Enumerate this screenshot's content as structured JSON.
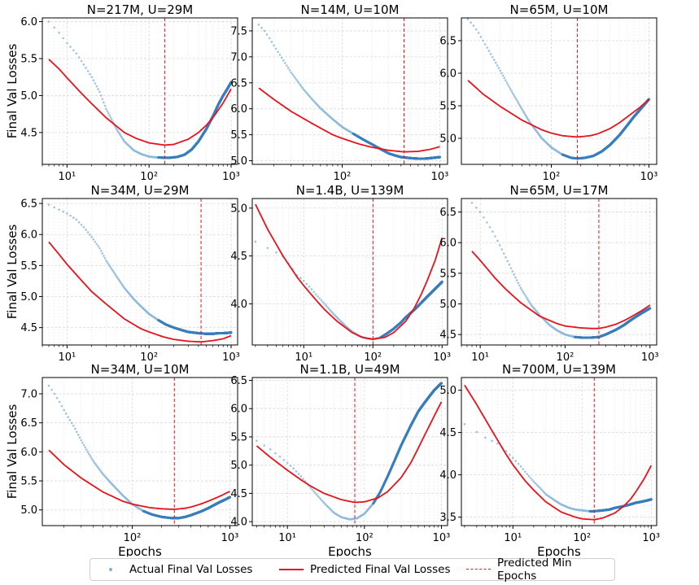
{
  "chart_data": [
    {
      "type": "line",
      "title": "N=217M, U=29M",
      "ylabel": "Final Val Losses",
      "xlabel": "",
      "xlim": [
        5,
        1200
      ],
      "ylim": [
        4.07,
        6.05
      ],
      "yticks": [
        4.5,
        5.0,
        5.5,
        6.0
      ],
      "ytick_labels": [
        "4.5",
        "5.0",
        "5.5",
        "6.0"
      ],
      "xticks": [
        10,
        100,
        1000
      ],
      "xtick_labels": [
        "10¹",
        "10²",
        "10³"
      ],
      "min_epochs": 155,
      "actual_x": [
        6,
        8,
        10,
        13,
        16,
        20,
        25,
        30,
        40,
        50,
        65,
        80,
        100,
        120,
        150,
        180,
        220,
        270,
        330,
        400,
        500,
        600,
        700,
        800,
        900,
        1000
      ],
      "actual_y": [
        6.0,
        5.85,
        5.71,
        5.57,
        5.42,
        5.25,
        5.05,
        4.82,
        4.55,
        4.38,
        4.26,
        4.21,
        4.175,
        4.165,
        4.16,
        4.16,
        4.17,
        4.2,
        4.27,
        4.38,
        4.55,
        4.72,
        4.88,
        5.0,
        5.09,
        5.18
      ],
      "pred_x": [
        6,
        8,
        10,
        15,
        20,
        30,
        50,
        70,
        100,
        155,
        200,
        300,
        400,
        500,
        600,
        800,
        1000
      ],
      "pred_y": [
        5.49,
        5.36,
        5.24,
        5.03,
        4.89,
        4.7,
        4.5,
        4.42,
        4.36,
        4.33,
        4.34,
        4.41,
        4.5,
        4.6,
        4.7,
        4.9,
        5.09
      ]
    },
    {
      "type": "line",
      "title": "N=14M, U=10M",
      "ylabel": "",
      "xlabel": "",
      "xlim": [
        12,
        1200
      ],
      "ylim": [
        4.93,
        7.75
      ],
      "yticks": [
        5.0,
        5.5,
        6.0,
        6.5,
        7.0,
        7.5
      ],
      "ytick_labels": [
        "5.0",
        "5.5",
        "6.0",
        "6.5",
        "7.0",
        "7.5"
      ],
      "xticks": [
        100,
        1000
      ],
      "xtick_labels": [
        "10²",
        "10³"
      ],
      "min_epochs": 430,
      "actual_x": [
        14,
        16,
        18,
        20,
        25,
        30,
        40,
        50,
        60,
        80,
        100,
        130,
        160,
        200,
        250,
        300,
        350,
        400,
        450,
        500,
        600,
        700,
        800,
        900,
        1000
      ],
      "actual_y": [
        7.62,
        7.5,
        7.36,
        7.22,
        6.93,
        6.7,
        6.38,
        6.17,
        6.01,
        5.8,
        5.65,
        5.52,
        5.42,
        5.32,
        5.22,
        5.14,
        5.1,
        5.07,
        5.06,
        5.05,
        5.04,
        5.04,
        5.05,
        5.06,
        5.07
      ],
      "pred_x": [
        14,
        20,
        30,
        50,
        80,
        100,
        150,
        200,
        300,
        430,
        600,
        800,
        1000
      ],
      "pred_y": [
        6.4,
        6.18,
        5.95,
        5.71,
        5.5,
        5.43,
        5.32,
        5.26,
        5.2,
        5.17,
        5.18,
        5.22,
        5.27
      ]
    },
    {
      "type": "line",
      "title": "N=65M, U=10M",
      "ylabel": "",
      "xlabel": "",
      "xlim": [
        12,
        1200
      ],
      "ylim": [
        4.6,
        6.85
      ],
      "yticks": [
        5.0,
        5.5,
        6.0,
        6.5
      ],
      "ytick_labels": [
        "5.0",
        "5.5",
        "6.0",
        "6.5"
      ],
      "xticks": [
        100,
        1000
      ],
      "xtick_labels": [
        "10²",
        "10³"
      ],
      "min_epochs": 185,
      "actual_x": [
        14,
        16,
        18,
        20,
        25,
        30,
        40,
        50,
        60,
        80,
        100,
        130,
        160,
        185,
        220,
        270,
        330,
        400,
        500,
        600,
        700,
        800,
        900,
        1000
      ],
      "actual_y": [
        6.83,
        6.73,
        6.62,
        6.5,
        6.25,
        6.04,
        5.7,
        5.45,
        5.25,
        5.0,
        4.86,
        4.75,
        4.7,
        4.69,
        4.7,
        4.73,
        4.8,
        4.9,
        5.05,
        5.2,
        5.33,
        5.43,
        5.52,
        5.6
      ],
      "pred_x": [
        14,
        20,
        30,
        50,
        80,
        100,
        130,
        185,
        250,
        300,
        400,
        500,
        600,
        800,
        1000
      ],
      "pred_y": [
        5.89,
        5.68,
        5.49,
        5.28,
        5.13,
        5.08,
        5.04,
        5.02,
        5.04,
        5.07,
        5.15,
        5.24,
        5.33,
        5.47,
        5.6
      ]
    },
    {
      "type": "line",
      "title": "N=34M, U=29M",
      "ylabel": "Final Val Losses",
      "xlabel": "",
      "xlim": [
        5,
        1200
      ],
      "ylim": [
        4.22,
        6.58
      ],
      "yticks": [
        4.5,
        5.0,
        5.5,
        6.0,
        6.5
      ],
      "ytick_labels": [
        "4.5",
        "5.0",
        "5.5",
        "6.0",
        "6.5"
      ],
      "xticks": [
        10,
        100,
        1000
      ],
      "xtick_labels": [
        "10¹",
        "10²",
        "10³"
      ],
      "min_epochs": 430,
      "actual_x": [
        6,
        8,
        10,
        13,
        16,
        20,
        25,
        30,
        40,
        50,
        65,
        80,
        100,
        130,
        160,
        200,
        250,
        300,
        400,
        500,
        600,
        700,
        800,
        1000
      ],
      "actual_y": [
        6.48,
        6.4,
        6.34,
        6.24,
        6.12,
        5.96,
        5.78,
        5.58,
        5.33,
        5.14,
        4.96,
        4.84,
        4.72,
        4.62,
        4.55,
        4.5,
        4.46,
        4.43,
        4.41,
        4.4,
        4.4,
        4.41,
        4.41,
        4.42
      ],
      "pred_x": [
        6,
        8,
        10,
        15,
        20,
        30,
        50,
        80,
        100,
        150,
        200,
        300,
        430,
        600,
        800,
        1000
      ],
      "pred_y": [
        5.88,
        5.68,
        5.52,
        5.26,
        5.08,
        4.88,
        4.64,
        4.48,
        4.43,
        4.35,
        4.31,
        4.28,
        4.27,
        4.29,
        4.32,
        4.37
      ]
    },
    {
      "type": "line",
      "title": "N=1.4B, U=139M",
      "ylabel": "",
      "xlabel": "",
      "xlim": [
        1.8,
        1200
      ],
      "ylim": [
        3.57,
        5.1
      ],
      "yticks": [
        4.0,
        4.5,
        5.0
      ],
      "ytick_labels": [
        "4.0",
        "4.5",
        "5.0"
      ],
      "xticks": [
        10,
        100,
        1000
      ],
      "xtick_labels": [
        "10¹",
        "10²",
        "10³"
      ],
      "min_epochs": 100,
      "actual_x": [
        2,
        5,
        8,
        10,
        12,
        15,
        20,
        25,
        30,
        40,
        50,
        65,
        80,
        100,
        130,
        160,
        200,
        250,
        300,
        400,
        500,
        600,
        800,
        1000
      ],
      "actual_y": [
        4.65,
        4.5,
        4.3,
        4.24,
        4.18,
        4.1,
        4.0,
        3.92,
        3.86,
        3.77,
        3.71,
        3.66,
        3.64,
        3.63,
        3.65,
        3.69,
        3.74,
        3.8,
        3.86,
        3.94,
        4.01,
        4.07,
        4.16,
        4.23
      ],
      "pred_x": [
        2,
        3,
        5,
        8,
        10,
        15,
        20,
        30,
        50,
        70,
        100,
        150,
        200,
        300,
        400,
        500,
        600,
        800,
        1000
      ],
      "pred_y": [
        5.04,
        4.78,
        4.5,
        4.28,
        4.19,
        4.04,
        3.94,
        3.82,
        3.7,
        3.65,
        3.63,
        3.65,
        3.7,
        3.82,
        3.96,
        4.1,
        4.23,
        4.46,
        4.69
      ]
    },
    {
      "type": "line",
      "title": "N=65M, U=17M",
      "ylabel": "",
      "xlabel": "",
      "xlim": [
        6,
        1200
      ],
      "ylim": [
        4.33,
        6.72
      ],
      "yticks": [
        4.5,
        5.0,
        5.5,
        6.0,
        6.5
      ],
      "ytick_labels": [
        "4.5",
        "5.0",
        "5.5",
        "6.0",
        "6.5"
      ],
      "xticks": [
        10,
        100,
        1000
      ],
      "xtick_labels": [
        "10¹",
        "10²",
        "10³"
      ],
      "min_epochs": 250,
      "actual_x": [
        8,
        10,
        12,
        14,
        16,
        18,
        20,
        25,
        30,
        40,
        50,
        65,
        80,
        100,
        130,
        160,
        200,
        250,
        300,
        400,
        500,
        600,
        700,
        800,
        1000
      ],
      "actual_y": [
        6.65,
        6.5,
        6.33,
        6.18,
        6.03,
        5.89,
        5.76,
        5.48,
        5.26,
        4.98,
        4.82,
        4.66,
        4.57,
        4.5,
        4.46,
        4.45,
        4.45,
        4.46,
        4.5,
        4.58,
        4.66,
        4.74,
        4.8,
        4.85,
        4.93
      ],
      "pred_x": [
        8,
        10,
        15,
        20,
        30,
        50,
        80,
        100,
        150,
        200,
        250,
        300,
        400,
        500,
        600,
        800,
        1000
      ],
      "pred_y": [
        5.86,
        5.71,
        5.42,
        5.24,
        5.02,
        4.8,
        4.68,
        4.64,
        4.61,
        4.6,
        4.6,
        4.62,
        4.67,
        4.73,
        4.79,
        4.89,
        4.98
      ]
    },
    {
      "type": "line",
      "title": "N=34M, U=10M",
      "ylabel": "Final Val Losses",
      "xlabel": "Epochs",
      "xlim": [
        12,
        1200
      ],
      "ylim": [
        4.73,
        7.28
      ],
      "yticks": [
        5.0,
        5.5,
        6.0,
        6.5,
        7.0
      ],
      "ytick_labels": [
        "5.0",
        "5.5",
        "6.0",
        "6.5",
        "7.0"
      ],
      "xticks": [
        100,
        1000
      ],
      "xtick_labels": [
        "10²",
        "10³"
      ],
      "min_epochs": 270,
      "actual_x": [
        14,
        16,
        18,
        20,
        22,
        25,
        30,
        35,
        40,
        50,
        60,
        80,
        100,
        130,
        160,
        200,
        250,
        300,
        350,
        400,
        500,
        600,
        700,
        800,
        900,
        1000
      ],
      "actual_y": [
        7.14,
        7.0,
        6.86,
        6.72,
        6.6,
        6.45,
        6.2,
        6.0,
        5.84,
        5.62,
        5.47,
        5.25,
        5.1,
        4.98,
        4.92,
        4.88,
        4.86,
        4.86,
        4.88,
        4.91,
        4.97,
        5.03,
        5.09,
        5.14,
        5.18,
        5.22
      ],
      "pred_x": [
        14,
        20,
        30,
        50,
        80,
        100,
        150,
        200,
        270,
        350,
        400,
        500,
        600,
        800,
        1000
      ],
      "pred_y": [
        6.03,
        5.78,
        5.55,
        5.31,
        5.15,
        5.1,
        5.04,
        5.02,
        5.01,
        5.03,
        5.05,
        5.1,
        5.15,
        5.24,
        5.32
      ]
    },
    {
      "type": "line",
      "title": "N=1.1B, U=49M",
      "ylabel": "",
      "xlabel": "Epochs",
      "xlim": [
        3.5,
        1200
      ],
      "ylim": [
        3.93,
        6.55
      ],
      "yticks": [
        4.0,
        4.5,
        5.0,
        5.5,
        6.0,
        6.5
      ],
      "ytick_labels": [
        "4.0",
        "4.5",
        "5.0",
        "5.5",
        "6.0",
        "6.5"
      ],
      "xticks": [
        10,
        100,
        1000
      ],
      "xtick_labels": [
        "10¹",
        "10²",
        "10³"
      ],
      "min_epochs": 75,
      "actual_x": [
        4,
        6,
        8,
        10,
        12,
        15,
        20,
        25,
        30,
        40,
        50,
        65,
        80,
        100,
        130,
        160,
        200,
        250,
        300,
        400,
        500,
        600,
        700,
        800,
        900,
        1000
      ],
      "actual_y": [
        5.43,
        5.28,
        5.15,
        5.04,
        4.94,
        4.8,
        4.6,
        4.45,
        4.33,
        4.16,
        4.08,
        4.04,
        4.06,
        4.14,
        4.32,
        4.52,
        4.8,
        5.1,
        5.35,
        5.7,
        5.95,
        6.1,
        6.22,
        6.32,
        6.39,
        6.45
      ],
      "pred_x": [
        4,
        6,
        10,
        15,
        20,
        30,
        50,
        75,
        100,
        150,
        200,
        300,
        400,
        500,
        600,
        800,
        1000
      ],
      "pred_y": [
        5.34,
        5.14,
        4.91,
        4.74,
        4.63,
        4.5,
        4.39,
        4.34,
        4.35,
        4.42,
        4.53,
        4.78,
        5.04,
        5.3,
        5.52,
        5.86,
        6.12
      ]
    },
    {
      "type": "line",
      "title": "N=700M, U=139M",
      "ylabel": "",
      "xlabel": "Epochs",
      "xlim": [
        1.8,
        1200
      ],
      "ylim": [
        3.4,
        5.15
      ],
      "yticks": [
        3.5,
        4.0,
        4.5,
        5.0
      ],
      "ytick_labels": [
        "3.5",
        "4.0",
        "4.5",
        "5.0"
      ],
      "xticks": [
        10,
        100,
        1000
      ],
      "xtick_labels": [
        "10¹",
        "10²",
        "10³"
      ],
      "min_epochs": 150,
      "actual_x": [
        2,
        4,
        6,
        8,
        10,
        13,
        16,
        20,
        25,
        30,
        40,
        50,
        65,
        80,
        100,
        130,
        150,
        200,
        250,
        300,
        400,
        500,
        600,
        700,
        800,
        900,
        1000
      ],
      "actual_y": [
        4.6,
        4.44,
        4.37,
        4.28,
        4.2,
        4.1,
        4.01,
        3.92,
        3.84,
        3.77,
        3.7,
        3.65,
        3.61,
        3.59,
        3.58,
        3.57,
        3.57,
        3.58,
        3.59,
        3.61,
        3.63,
        3.65,
        3.67,
        3.68,
        3.69,
        3.7,
        3.71
      ],
      "pred_x": [
        2,
        3,
        5,
        8,
        10,
        15,
        20,
        30,
        50,
        80,
        100,
        150,
        200,
        300,
        400,
        500,
        600,
        800,
        1000
      ],
      "pred_y": [
        5.06,
        4.83,
        4.52,
        4.24,
        4.12,
        3.93,
        3.82,
        3.68,
        3.56,
        3.5,
        3.48,
        3.47,
        3.49,
        3.55,
        3.63,
        3.71,
        3.8,
        3.96,
        4.11
      ]
    }
  ],
  "legend": {
    "actual": "Actual Final Val Losses",
    "predicted": "Predicted Final Val Losses",
    "min_epochs": "Predicted Min Epochs"
  },
  "colors": {
    "actual": "#3a7fbd",
    "actual_light": "#8dbadc",
    "predicted": "#e8121a",
    "grid": "#d9d9d9"
  }
}
